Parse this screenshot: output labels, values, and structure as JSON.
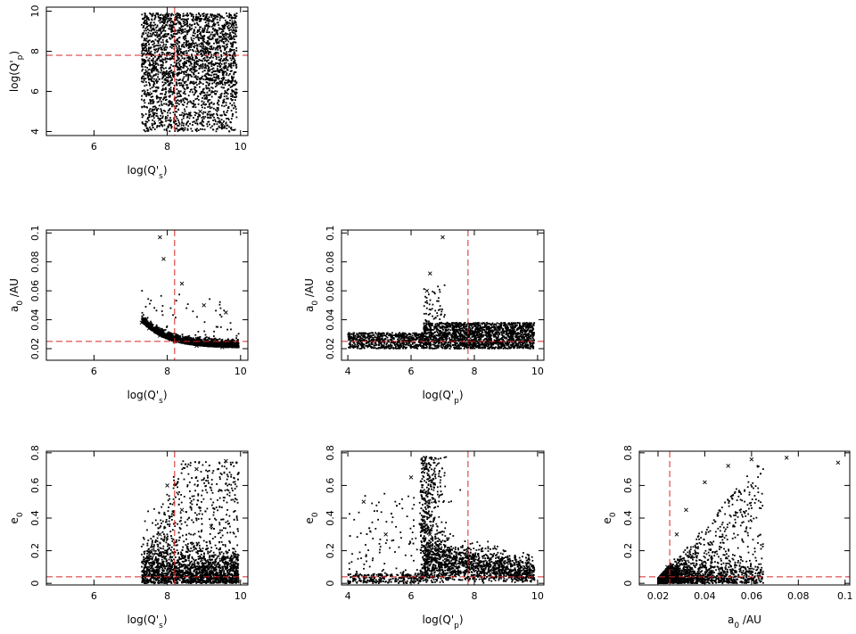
{
  "chart_data": [
    {
      "id": "qs-qp",
      "type": "scatter",
      "xlabel": {
        "base": "log(Q'",
        "sub": "s",
        "end": ")"
      },
      "ylabel": {
        "base": "log(Q'",
        "sub": "p",
        "end": ")"
      },
      "xlim": [
        4.7,
        10.2
      ],
      "ylim": [
        3.8,
        10.2
      ],
      "xticks": [
        6,
        8,
        10
      ],
      "yticks": [
        4,
        6,
        8,
        10
      ],
      "xtick_labels": [
        "6",
        "8",
        "10"
      ],
      "ytick_labels": [
        "4",
        "6",
        "8",
        "10"
      ],
      "ref_lines": {
        "x": 8.2,
        "y": 7.8,
        "color": "#d62728"
      },
      "points": [
        [
          7.4,
          8.2
        ],
        [
          7.6,
          9.1
        ],
        [
          7.9,
          6.9
        ],
        [
          8.3,
          9.8
        ],
        [
          8.7,
          7.2
        ],
        [
          9.2,
          6.6
        ],
        [
          9.6,
          8.8
        ],
        [
          7.8,
          4.6
        ],
        [
          8.1,
          5.4
        ],
        [
          8.9,
          5.0
        ],
        [
          9.5,
          4.4
        ],
        [
          7.5,
          5.9
        ]
      ]
    },
    {
      "id": "qs-a0",
      "type": "scatter",
      "xlabel": {
        "base": "log(Q'",
        "sub": "s",
        "end": ")"
      },
      "ylabel": {
        "base": "a",
        "sub": "0",
        "end": " /AU"
      },
      "xlim": [
        4.7,
        10.2
      ],
      "ylim": [
        0.012,
        0.102
      ],
      "xticks": [
        6,
        8,
        10
      ],
      "yticks": [
        0.02,
        0.04,
        0.06,
        0.08,
        0.1
      ],
      "xtick_labels": [
        "6",
        "8",
        "10"
      ],
      "ytick_labels": [
        "0.02",
        "0.04",
        "0.06",
        "0.08",
        "0.1"
      ],
      "ref_lines": {
        "x": 8.2,
        "y": 0.025,
        "color": "#d62728"
      },
      "points": [
        [
          7.3,
          0.038
        ],
        [
          7.5,
          0.034
        ],
        [
          7.8,
          0.029
        ],
        [
          8.2,
          0.025
        ],
        [
          8.8,
          0.022
        ],
        [
          9.5,
          0.021
        ],
        [
          7.8,
          0.097
        ],
        [
          7.9,
          0.082
        ],
        [
          8.4,
          0.065
        ],
        [
          9.0,
          0.05
        ],
        [
          9.6,
          0.045
        ]
      ]
    },
    {
      "id": "qp-a0",
      "type": "scatter",
      "xlabel": {
        "base": "log(Q'",
        "sub": "p",
        "end": ")"
      },
      "ylabel": {
        "base": "a",
        "sub": "0",
        "end": " /AU"
      },
      "xlim": [
        3.8,
        10.2
      ],
      "ylim": [
        0.012,
        0.102
      ],
      "xticks": [
        4,
        6,
        8,
        10
      ],
      "yticks": [
        0.02,
        0.04,
        0.06,
        0.08,
        0.1
      ],
      "xtick_labels": [
        "4",
        "6",
        "8",
        "10"
      ],
      "ytick_labels": [
        "0.02",
        "0.04",
        "0.06",
        "0.08",
        "0.1"
      ],
      "ref_lines": {
        "x": 7.8,
        "y": 0.025,
        "color": "#d62728"
      },
      "points": [
        [
          4.2,
          0.027
        ],
        [
          5.0,
          0.03
        ],
        [
          6.0,
          0.025
        ],
        [
          6.5,
          0.06
        ],
        [
          6.6,
          0.072
        ],
        [
          7.0,
          0.097
        ],
        [
          7.8,
          0.03
        ],
        [
          8.5,
          0.028
        ],
        [
          9.5,
          0.035
        ],
        [
          9.8,
          0.022
        ]
      ]
    },
    {
      "id": "qs-e0",
      "type": "scatter",
      "xlabel": {
        "base": "log(Q'",
        "sub": "s",
        "end": ")"
      },
      "ylabel": {
        "base": "e",
        "sub": "0",
        "end": ""
      },
      "xlim": [
        4.7,
        10.2
      ],
      "ylim": [
        -0.01,
        0.81
      ],
      "xticks": [
        6,
        8,
        10
      ],
      "yticks": [
        0,
        0.2,
        0.4,
        0.6,
        0.8
      ],
      "xtick_labels": [
        "6",
        "8",
        "10"
      ],
      "ytick_labels": [
        "0",
        "0.2",
        "0.4",
        "0.6",
        "0.8"
      ],
      "ref_lines": {
        "x": 8.2,
        "y": 0.04,
        "color": "#d62728"
      },
      "points": [
        [
          7.4,
          0.05
        ],
        [
          7.6,
          0.12
        ],
        [
          7.8,
          0.3
        ],
        [
          8.0,
          0.6
        ],
        [
          8.4,
          0.45
        ],
        [
          8.8,
          0.7
        ],
        [
          9.2,
          0.35
        ],
        [
          9.6,
          0.75
        ],
        [
          9.9,
          0.15
        ]
      ]
    },
    {
      "id": "qp-e0",
      "type": "scatter",
      "xlabel": {
        "base": "log(Q'",
        "sub": "p",
        "end": ")"
      },
      "ylabel": {
        "base": "e",
        "sub": "0",
        "end": ""
      },
      "xlim": [
        3.8,
        10.2
      ],
      "ylim": [
        -0.01,
        0.81
      ],
      "xticks": [
        4,
        6,
        8,
        10
      ],
      "yticks": [
        0,
        0.2,
        0.4,
        0.6,
        0.8
      ],
      "xtick_labels": [
        "4",
        "6",
        "8",
        "10"
      ],
      "ytick_labels": [
        "0",
        "0.2",
        "0.4",
        "0.6",
        "0.8"
      ],
      "ref_lines": {
        "x": 7.8,
        "y": 0.04,
        "color": "#d62728"
      },
      "points": [
        [
          4.2,
          0.02
        ],
        [
          4.5,
          0.5
        ],
        [
          5.2,
          0.3
        ],
        [
          6.0,
          0.65
        ],
        [
          6.4,
          0.75
        ],
        [
          6.5,
          0.5
        ],
        [
          6.6,
          0.3
        ],
        [
          7.0,
          0.2
        ],
        [
          7.8,
          0.12
        ],
        [
          8.5,
          0.08
        ],
        [
          9.5,
          0.1
        ]
      ]
    },
    {
      "id": "a0-e0",
      "type": "scatter",
      "xlabel": {
        "base": "a",
        "sub": "0",
        "end": " /AU"
      },
      "ylabel": {
        "base": "e",
        "sub": "0",
        "end": ""
      },
      "xlim": [
        0.012,
        0.102
      ],
      "ylim": [
        -0.01,
        0.81
      ],
      "xticks": [
        0.02,
        0.04,
        0.06,
        0.08,
        0.1
      ],
      "yticks": [
        0,
        0.2,
        0.4,
        0.6,
        0.8
      ],
      "xtick_labels": [
        "0.02",
        "0.04",
        "0.06",
        "0.08",
        "0.1"
      ],
      "ytick_labels": [
        "0",
        "0.2",
        "0.4",
        "0.6",
        "0.8"
      ],
      "ref_lines": {
        "x": 0.025,
        "y": 0.04,
        "color": "#d62728"
      },
      "points": [
        [
          0.021,
          0.02
        ],
        [
          0.024,
          0.1
        ],
        [
          0.028,
          0.3
        ],
        [
          0.032,
          0.45
        ],
        [
          0.04,
          0.62
        ],
        [
          0.05,
          0.72
        ],
        [
          0.06,
          0.76
        ],
        [
          0.075,
          0.77
        ],
        [
          0.097,
          0.74
        ]
      ]
    }
  ]
}
